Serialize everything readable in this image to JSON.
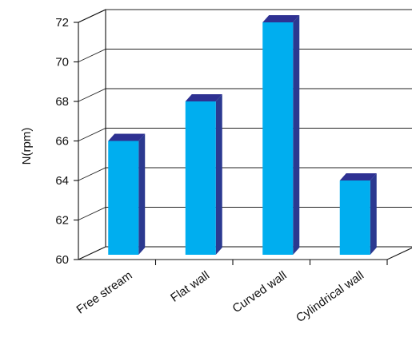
{
  "chart_data": {
    "type": "bar",
    "title": "",
    "xlabel": "",
    "ylabel": "N(rpm)",
    "categories": [
      "Free stream",
      "Flat wall",
      "Curved wall",
      "Cylindrical wall"
    ],
    "values": [
      66,
      68,
      72,
      64
    ],
    "ylim": [
      60,
      72
    ],
    "yticks": [
      60,
      62,
      64,
      66,
      68,
      70,
      72
    ],
    "grid": true,
    "legend": "none",
    "style": "3d",
    "colors": {
      "bar_front": "#00aeef",
      "bar_side": "#2b3990",
      "bar_top": "#2e3192"
    }
  }
}
